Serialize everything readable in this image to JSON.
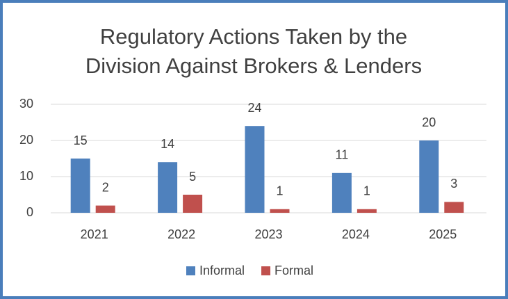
{
  "chart_data": {
    "type": "bar",
    "title": "Regulatory Actions Taken by the Division Against Brokers & Lenders",
    "categories": [
      "2021",
      "2022",
      "2023",
      "2024",
      "2025"
    ],
    "series": [
      {
        "name": "Informal",
        "color": "#4f81bd",
        "values": [
          15,
          14,
          24,
          11,
          20
        ]
      },
      {
        "name": "Formal",
        "color": "#c0504d",
        "values": [
          2,
          5,
          1,
          1,
          3
        ]
      }
    ],
    "ylim": [
      0,
      30
    ],
    "yticks": [
      0,
      10,
      20,
      30
    ],
    "grid": true,
    "legend": "bottom"
  }
}
